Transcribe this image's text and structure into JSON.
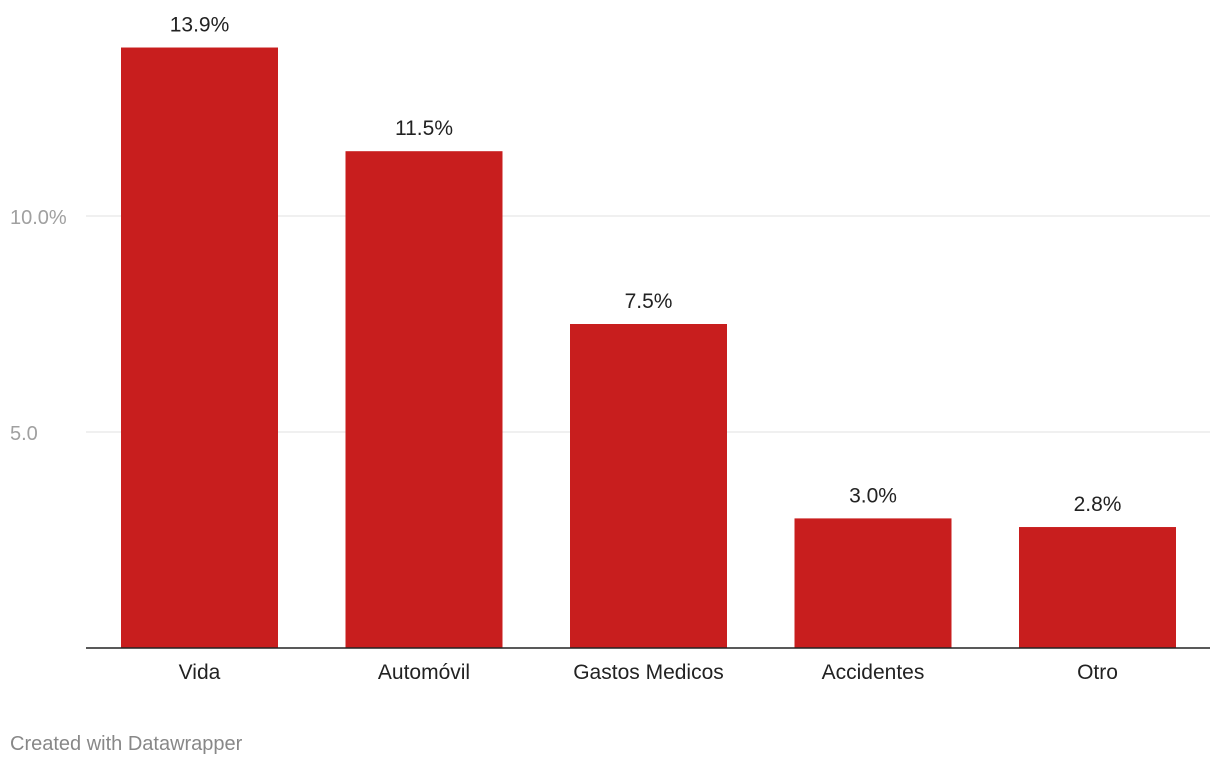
{
  "colors": {
    "bar": "#c81e1e",
    "grid": "#e0e0e0",
    "axis": "#222222",
    "tick": "#a0a0a0",
    "label": "#222222",
    "credit": "#888888"
  },
  "credit": "Created with Datawrapper",
  "chart_data": {
    "type": "bar",
    "title": "",
    "xlabel": "",
    "ylabel": "",
    "categories": [
      "Vida",
      "Automóvil",
      "Gastos Medicos",
      "Accidentes",
      "Otro"
    ],
    "values": [
      13.9,
      11.5,
      7.5,
      3.0,
      2.8
    ],
    "value_labels": [
      "13.9%",
      "11.5%",
      "7.5%",
      "3.0%",
      "2.8%"
    ],
    "y_ticks": [
      {
        "value": 5,
        "label": "5.0"
      },
      {
        "value": 10,
        "label": "10.0%"
      }
    ],
    "ylim": [
      0,
      14
    ],
    "grid": true,
    "legend": "none"
  }
}
